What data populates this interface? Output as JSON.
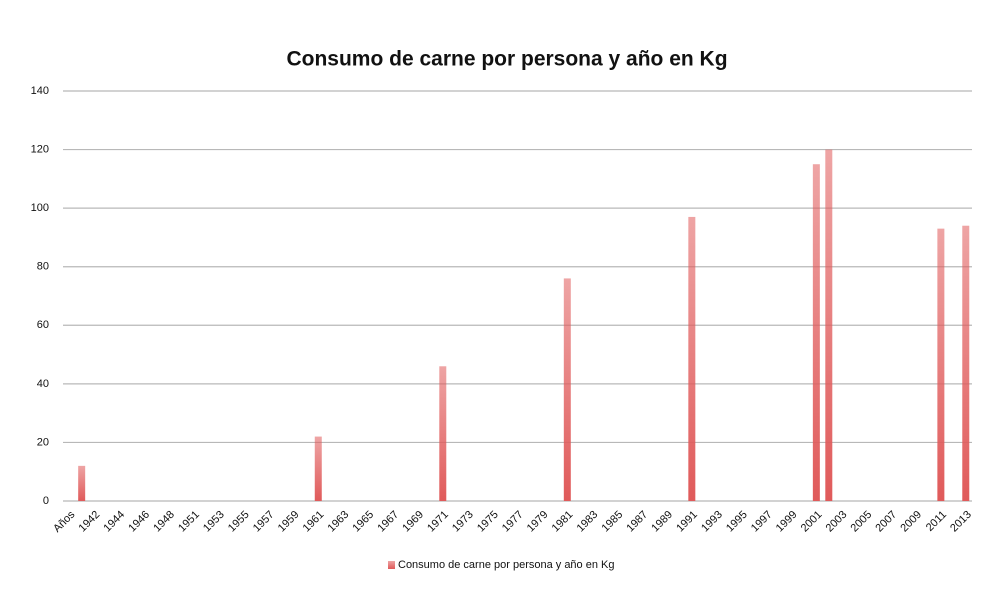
{
  "chart_data": {
    "type": "bar",
    "title": "Consumo de carne por persona y año en Kg",
    "categories": [
      "Años",
      null,
      "1942",
      null,
      "1944",
      null,
      "1946",
      null,
      "1948",
      null,
      "1951",
      null,
      "1953",
      null,
      "1955",
      null,
      "1957",
      null,
      "1959",
      null,
      "1961",
      null,
      "1963",
      null,
      "1965",
      null,
      "1967",
      null,
      "1969",
      null,
      "1971",
      null,
      "1973",
      null,
      "1975",
      null,
      "1977",
      null,
      "1979",
      null,
      "1981",
      null,
      "1983",
      null,
      "1985",
      null,
      "1987",
      null,
      "1989",
      null,
      "1991",
      null,
      "1993",
      null,
      "1995",
      null,
      "1997",
      null,
      "1999",
      null,
      "2001",
      null,
      "2003",
      null,
      "2005",
      null,
      "2007",
      null,
      "2009",
      null,
      "2011",
      null,
      "2013"
    ],
    "series": [
      {
        "name": "Consumo de carne por persona y año en Kg",
        "color": "#e05a5a",
        "values": [
          null,
          12,
          null,
          null,
          null,
          null,
          null,
          null,
          null,
          null,
          null,
          null,
          null,
          null,
          null,
          null,
          null,
          null,
          null,
          null,
          22,
          null,
          null,
          null,
          null,
          null,
          null,
          null,
          null,
          null,
          46,
          null,
          null,
          null,
          null,
          null,
          null,
          null,
          null,
          null,
          76,
          null,
          null,
          null,
          null,
          null,
          null,
          null,
          null,
          null,
          97,
          null,
          null,
          null,
          null,
          null,
          null,
          null,
          null,
          null,
          115,
          120,
          null,
          null,
          null,
          null,
          null,
          null,
          null,
          null,
          93,
          null,
          94
        ]
      }
    ],
    "ylim": [
      0,
      140
    ],
    "yticks": [
      0,
      20,
      40,
      60,
      80,
      100,
      120,
      140
    ],
    "grid": true,
    "legend": "bottom"
  }
}
